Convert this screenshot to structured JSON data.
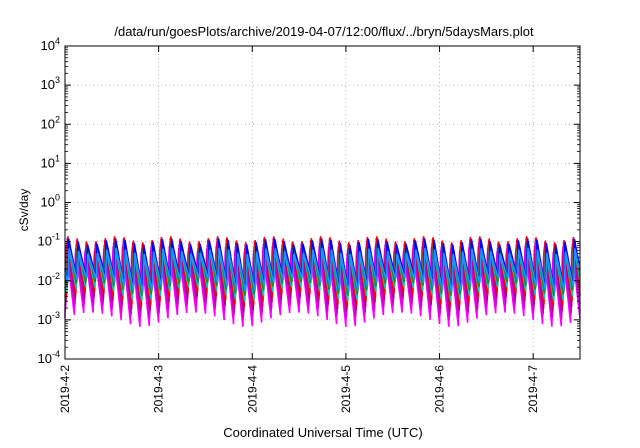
{
  "chart_data": {
    "type": "line",
    "title": "/data/run/goesPlots/archive/2019-04-07/12:00/flux/../bryn/5daysMars.plot",
    "xlabel": "Coordinated Universal Time (UTC)",
    "ylabel": "cSv/day",
    "yscale": "log",
    "ylim": [
      0.0001,
      10000
    ],
    "xlim_days": [
      0,
      5.5
    ],
    "x_ticks": [
      {
        "day": 0,
        "label": "2019-4-2"
      },
      {
        "day": 1,
        "label": "2019-4-3"
      },
      {
        "day": 2,
        "label": "2019-4-4"
      },
      {
        "day": 3,
        "label": "2019-4-5"
      },
      {
        "day": 4,
        "label": "2019-4-6"
      },
      {
        "day": 5,
        "label": "2019-4-7"
      }
    ],
    "y_ticks": [
      {
        "value": 0.0001,
        "base": "10",
        "exp": "-4"
      },
      {
        "value": 0.001,
        "base": "10",
        "exp": "-3"
      },
      {
        "value": 0.01,
        "base": "10",
        "exp": "-2"
      },
      {
        "value": 0.1,
        "base": "10",
        "exp": "-1"
      },
      {
        "value": 1,
        "base": "10",
        "exp": "0"
      },
      {
        "value": 10,
        "base": "10",
        "exp": "1"
      },
      {
        "value": 100,
        "base": "10",
        "exp": "2"
      },
      {
        "value": 1000,
        "base": "10",
        "exp": "3"
      },
      {
        "value": 10000,
        "base": "10",
        "exp": "4"
      }
    ],
    "grid": true,
    "sawtooth_period_days": 0.1,
    "series": [
      {
        "color": "#ff00ff",
        "peak": 0.09,
        "trough": 0.0011
      },
      {
        "color": "#e600e6",
        "peak": 0.085,
        "trough": 0.0014
      },
      {
        "color": "#cc00cc",
        "peak": 0.095,
        "trough": 0.0018
      },
      {
        "color": "#b40078",
        "peak": 0.13,
        "trough": 0.0025
      },
      {
        "color": "#ff0000",
        "peak": 0.15,
        "trough": 0.0035
      },
      {
        "color": "#00c8c8",
        "peak": 0.1,
        "trough": 0.005
      },
      {
        "color": "#228b22",
        "peak": 0.11,
        "trough": 0.006
      },
      {
        "color": "#0000ff",
        "peak": 0.12,
        "trough": 0.009
      },
      {
        "color": "#1e90ff",
        "peak": 0.07,
        "trough": 0.008
      }
    ]
  }
}
